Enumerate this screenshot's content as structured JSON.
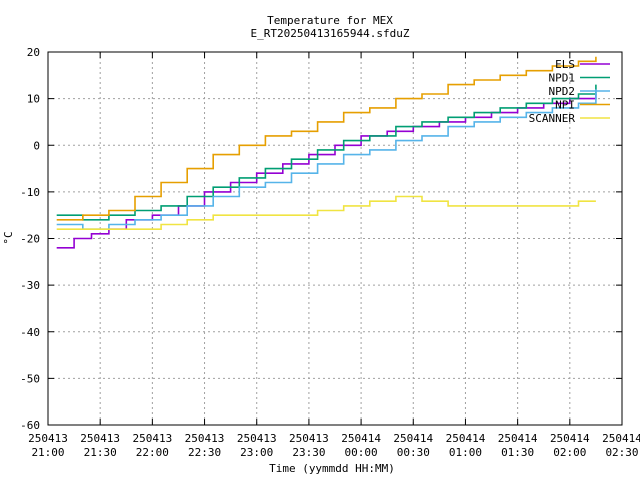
{
  "chart_data": {
    "type": "line",
    "title": "Temperature for MEX",
    "subtitle": "E_RT20250413165944.sfduZ",
    "xlabel": "Time (yymmdd HH:MM)",
    "ylabel": "°C",
    "xlim": [
      "250413 21:00",
      "250414 02:30"
    ],
    "ylim": [
      -60,
      20
    ],
    "grid": true,
    "legend_position": "top-right",
    "x_ticks": [
      {
        "date": "250413",
        "time": "21:00"
      },
      {
        "date": "250413",
        "time": "21:30"
      },
      {
        "date": "250413",
        "time": "22:00"
      },
      {
        "date": "250413",
        "time": "22:30"
      },
      {
        "date": "250413",
        "time": "23:00"
      },
      {
        "date": "250413",
        "time": "23:30"
      },
      {
        "date": "250414",
        "time": "00:00"
      },
      {
        "date": "250414",
        "time": "00:30"
      },
      {
        "date": "250414",
        "time": "01:00"
      },
      {
        "date": "250414",
        "time": "01:30"
      },
      {
        "date": "250414",
        "time": "02:00"
      },
      {
        "date": "250414",
        "time": "02:30"
      }
    ],
    "y_ticks": [
      "20",
      "10",
      "0",
      "-10",
      "-20",
      "-30",
      "-40",
      "-50",
      "-60"
    ],
    "series": [
      {
        "name": "ELS",
        "color": "#9400d3",
        "x": [
          "250413 21:05",
          "250413 21:15",
          "250413 21:25",
          "250413 21:35",
          "250413 21:45",
          "250413 22:00",
          "250413 22:15",
          "250413 22:30",
          "250413 22:45",
          "250413 23:00",
          "250413 23:15",
          "250413 23:30",
          "250413 23:45",
          "250414 00:00",
          "250414 00:15",
          "250414 00:30",
          "250414 00:45",
          "250414 01:00",
          "250414 01:15",
          "250414 01:30",
          "250414 01:45",
          "250414 02:00",
          "250414 02:15"
        ],
        "y": [
          -22,
          -20,
          -19,
          -18,
          -16,
          -15,
          -13,
          -10,
          -8,
          -6,
          -4,
          -2,
          0,
          2,
          3,
          4,
          5,
          6,
          7,
          8,
          9,
          10,
          11
        ]
      },
      {
        "name": "NPD1",
        "color": "#009e73",
        "x": [
          "250413 21:05",
          "250413 21:20",
          "250413 21:35",
          "250413 21:50",
          "250413 22:05",
          "250413 22:20",
          "250413 22:35",
          "250413 22:50",
          "250413 23:05",
          "250413 23:20",
          "250413 23:35",
          "250413 23:50",
          "250414 00:05",
          "250414 00:20",
          "250414 00:35",
          "250414 00:50",
          "250414 01:05",
          "250414 01:20",
          "250414 01:35",
          "250414 01:50",
          "250414 02:05",
          "250414 02:15"
        ],
        "y": [
          -15,
          -16,
          -15,
          -14,
          -13,
          -11,
          -9,
          -7,
          -5,
          -3,
          -1,
          1,
          2,
          4,
          5,
          6,
          7,
          8,
          9,
          10,
          11,
          13
        ]
      },
      {
        "name": "NPD2",
        "color": "#56b4e9",
        "x": [
          "250413 21:05",
          "250413 21:20",
          "250413 21:35",
          "250413 21:50",
          "250413 22:05",
          "250413 22:20",
          "250413 22:35",
          "250413 22:50",
          "250413 23:05",
          "250413 23:20",
          "250413 23:35",
          "250413 23:50",
          "250414 00:05",
          "250414 00:20",
          "250414 00:35",
          "250414 00:50",
          "250414 01:05",
          "250414 01:20",
          "250414 01:35",
          "250414 01:50",
          "250414 02:05",
          "250414 02:15"
        ],
        "y": [
          -17,
          -18,
          -17,
          -16,
          -15,
          -13,
          -11,
          -9,
          -8,
          -6,
          -4,
          -2,
          -1,
          1,
          2,
          4,
          5,
          6,
          7,
          8,
          9,
          12
        ]
      },
      {
        "name": "NPI",
        "color": "#e69f00",
        "x": [
          "250413 21:05",
          "250413 21:20",
          "250413 21:35",
          "250413 21:50",
          "250413 22:05",
          "250413 22:20",
          "250413 22:35",
          "250413 22:50",
          "250413 23:05",
          "250413 23:20",
          "250413 23:35",
          "250413 23:50",
          "250414 00:05",
          "250414 00:20",
          "250414 00:35",
          "250414 00:50",
          "250414 01:05",
          "250414 01:20",
          "250414 01:35",
          "250414 01:50",
          "250414 02:05",
          "250414 02:15"
        ],
        "y": [
          -16,
          -15,
          -14,
          -11,
          -8,
          -5,
          -2,
          0,
          2,
          3,
          5,
          7,
          8,
          10,
          11,
          13,
          14,
          15,
          16,
          17,
          18,
          19
        ]
      },
      {
        "name": "SCANNER",
        "color": "#f0e442",
        "x": [
          "250413 21:05",
          "250413 21:20",
          "250413 21:35",
          "250413 21:50",
          "250413 22:05",
          "250413 22:20",
          "250413 22:35",
          "250413 22:50",
          "250413 23:05",
          "250413 23:20",
          "250413 23:35",
          "250413 23:50",
          "250414 00:05",
          "250414 00:20",
          "250414 00:35",
          "250414 00:50",
          "250414 01:05",
          "250414 01:20",
          "250414 01:35",
          "250414 01:50",
          "250414 02:05",
          "250414 02:15"
        ],
        "y": [
          -18,
          -18,
          -18,
          -18,
          -17,
          -16,
          -15,
          -15,
          -15,
          -15,
          -14,
          -13,
          -12,
          -11,
          -12,
          -13,
          -13,
          -13,
          -13,
          -13,
          -12,
          -12
        ]
      }
    ]
  }
}
